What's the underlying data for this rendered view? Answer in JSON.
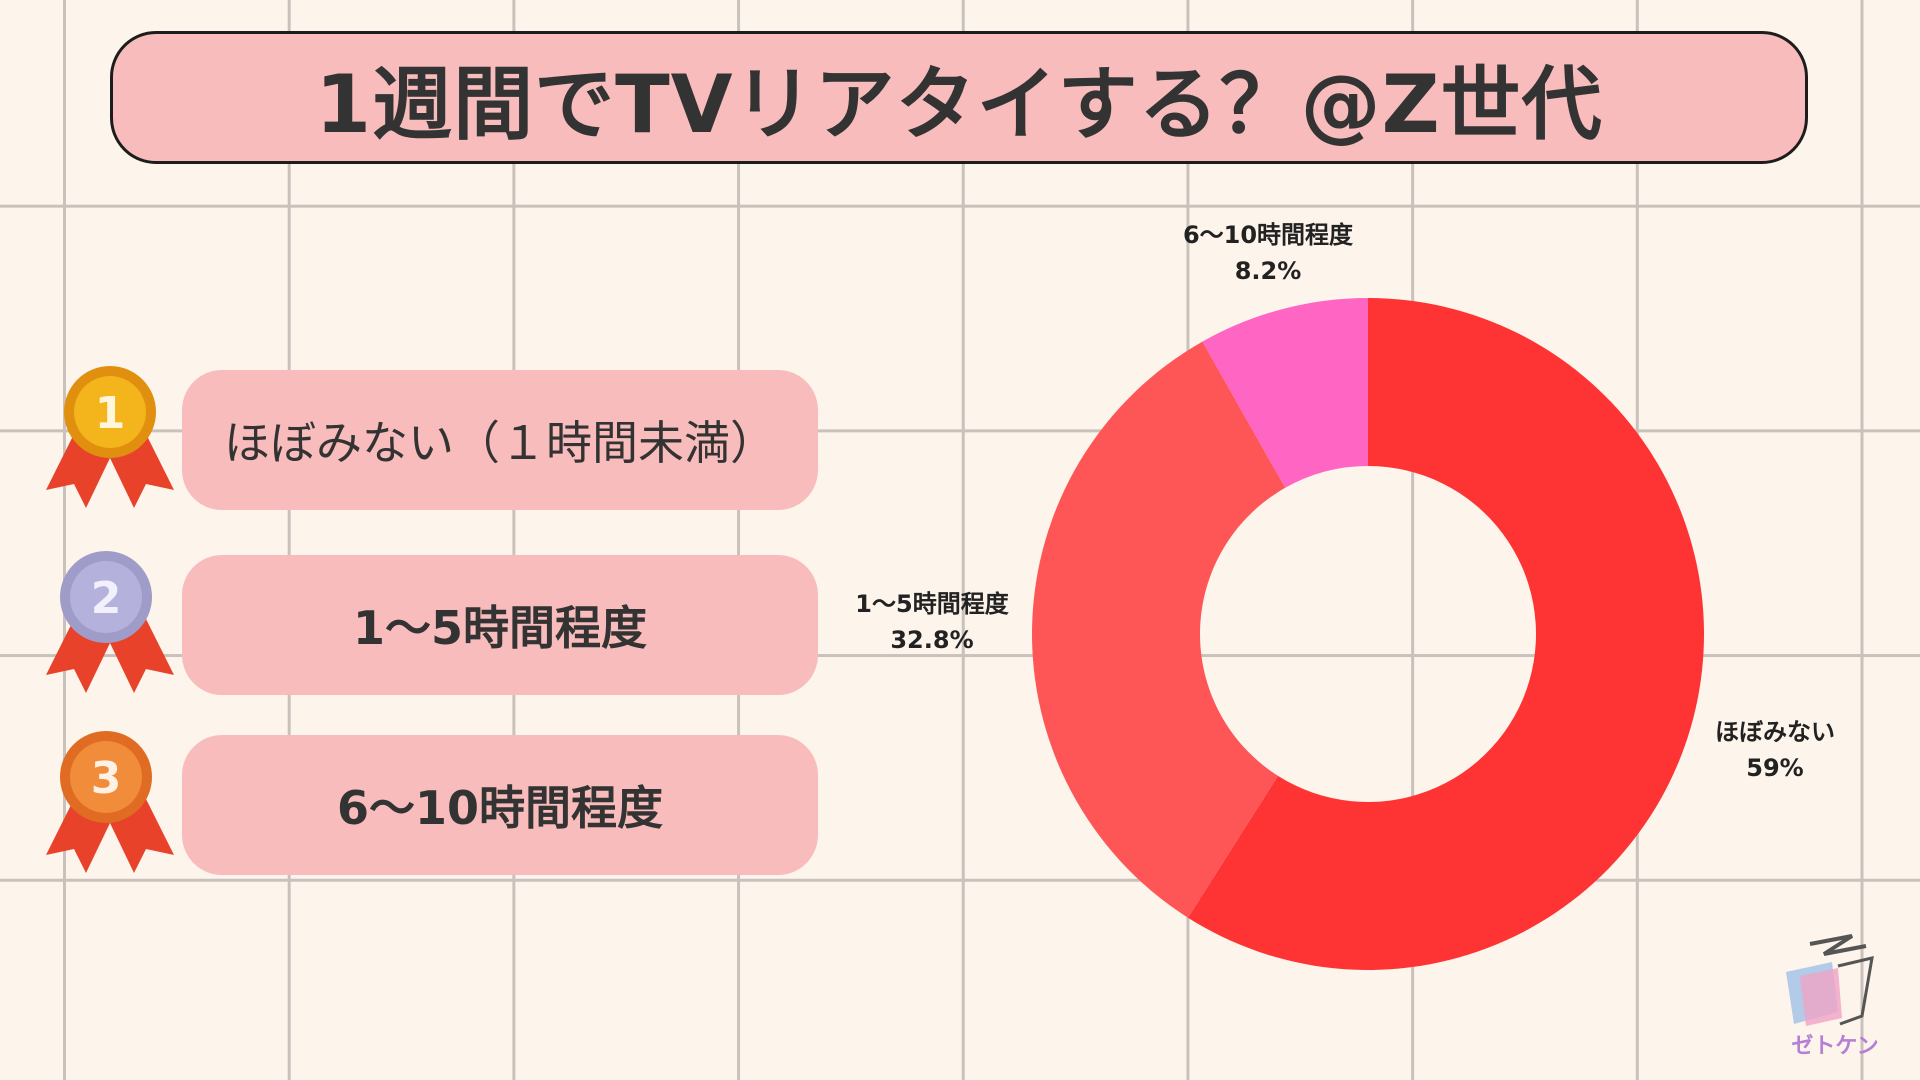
{
  "title": "1週間でTVリアタイする？@Z世代",
  "ranking": [
    {
      "rank": "1",
      "label": "ほぼみない（１時間未満）",
      "medal_color": "#f3b51b",
      "medal_rim": "#e08f0e"
    },
    {
      "rank": "2",
      "label": "1～5時間程度",
      "medal_color": "#b4b1dc",
      "medal_rim": "#9f9cc9"
    },
    {
      "rank": "3",
      "label": "6～10時間程度",
      "medal_color": "#f18c3a",
      "medal_rim": "#e06b23"
    }
  ],
  "chart_data": {
    "type": "pie",
    "variant": "donut",
    "slices": [
      {
        "label": "ほぼみない",
        "value": 59,
        "value_text": "59%",
        "color": "#fe3333"
      },
      {
        "label": "1～5時間程度",
        "value": 32.8,
        "value_text": "32.8%",
        "color": "#fe5656"
      },
      {
        "label": "6～10時間程度",
        "value": 8.2,
        "value_text": "8.2%",
        "color": "#ff66c4"
      }
    ],
    "start": "top",
    "direction": "clockwise"
  },
  "logo": {
    "text": "ゼトケン"
  },
  "colors": {
    "background": "#fdf4ec",
    "pill": "#f7bcbb",
    "ribbon": "#e8432a"
  }
}
